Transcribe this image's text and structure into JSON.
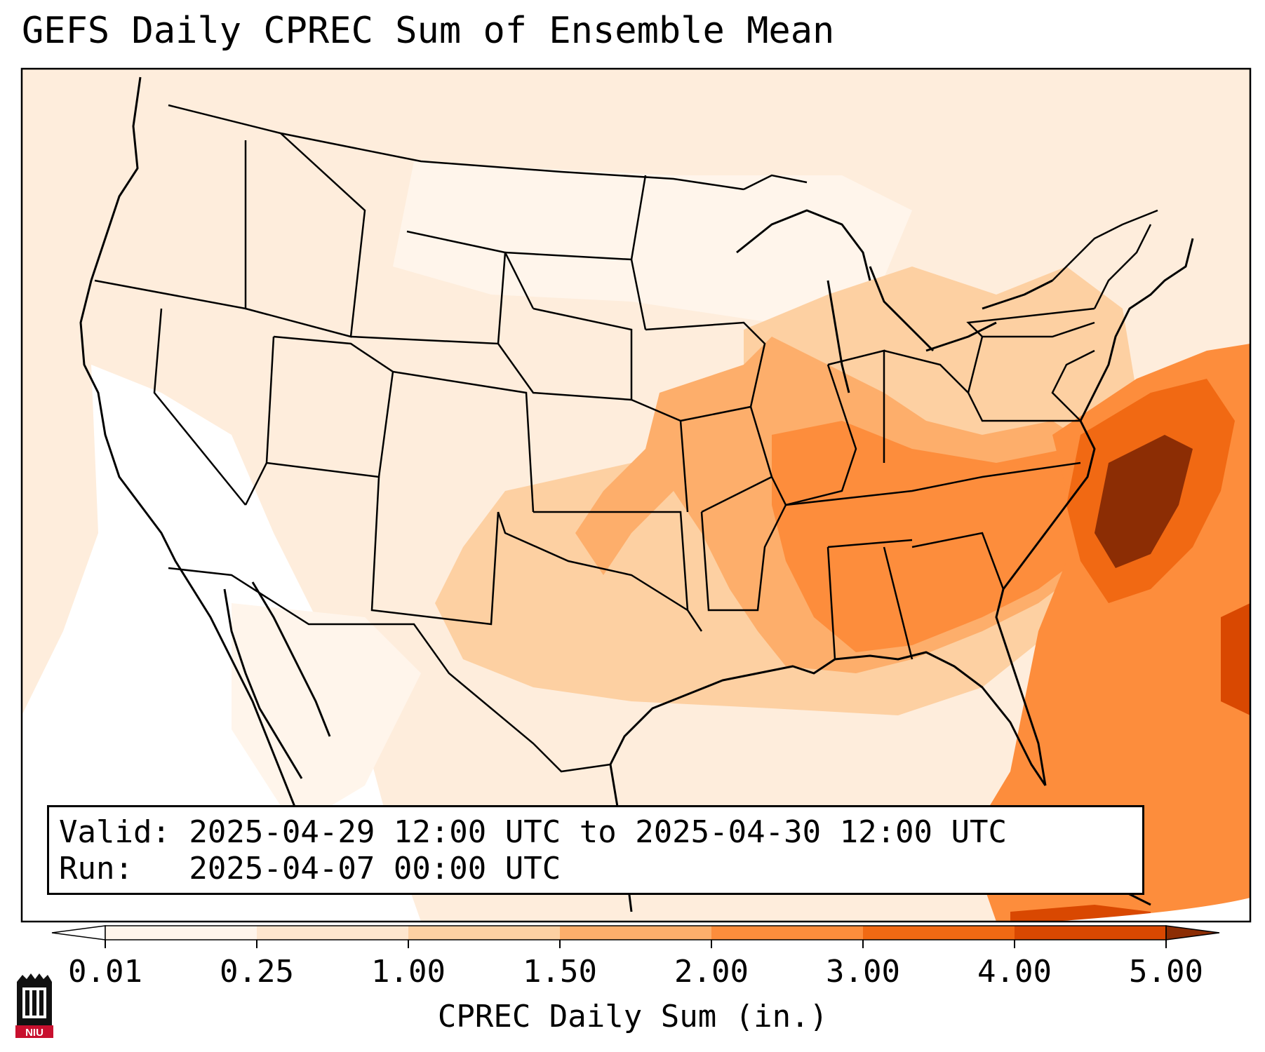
{
  "title": "GEFS Daily CPREC Sum of Ensemble Mean",
  "info": {
    "valid_line": "Valid: 2025-04-29 12:00 UTC to 2025-04-30 12:00 UTC",
    "run_line": "Run:   2025-04-07 00:00 UTC"
  },
  "colorbar": {
    "label": "CPREC Daily Sum (in.)",
    "ticks": [
      "0.01",
      "0.25",
      "1.00",
      "1.50",
      "2.00",
      "3.00",
      "4.00",
      "5.00"
    ],
    "colors": [
      "#ffffff",
      "#fff5eb",
      "#fee6ce",
      "#fdd0a2",
      "#fdae6b",
      "#fd8d3c",
      "#f16913",
      "#d94801",
      "#8c2d04"
    ],
    "extend": "both"
  },
  "logo": {
    "text": "NIU",
    "icon": "niu-tower-logo-icon"
  }
}
